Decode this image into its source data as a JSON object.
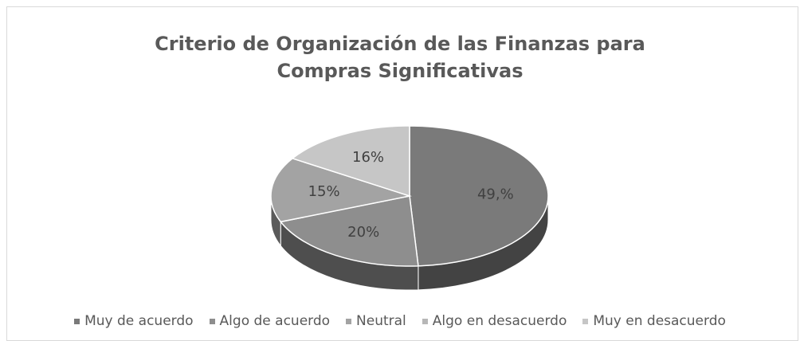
{
  "chart_data": {
    "type": "pie",
    "title": "Criterio de Organización de las Finanzas para Compras Significativas",
    "categories": [
      "Muy de acuerdo",
      "Algo de acuerdo",
      "Neutral",
      "Algo en desacuerdo",
      "Muy en desacuerdo"
    ],
    "values": [
      49,
      20,
      15,
      0,
      16
    ],
    "value_labels": [
      "49,%",
      "20%",
      "15%",
      null,
      "16%"
    ],
    "colors": [
      "#7a7a7a",
      "#8e8e8e",
      "#a3a3a3",
      "#b7b7b7",
      "#c6c6c6"
    ],
    "legend": "bottom"
  }
}
